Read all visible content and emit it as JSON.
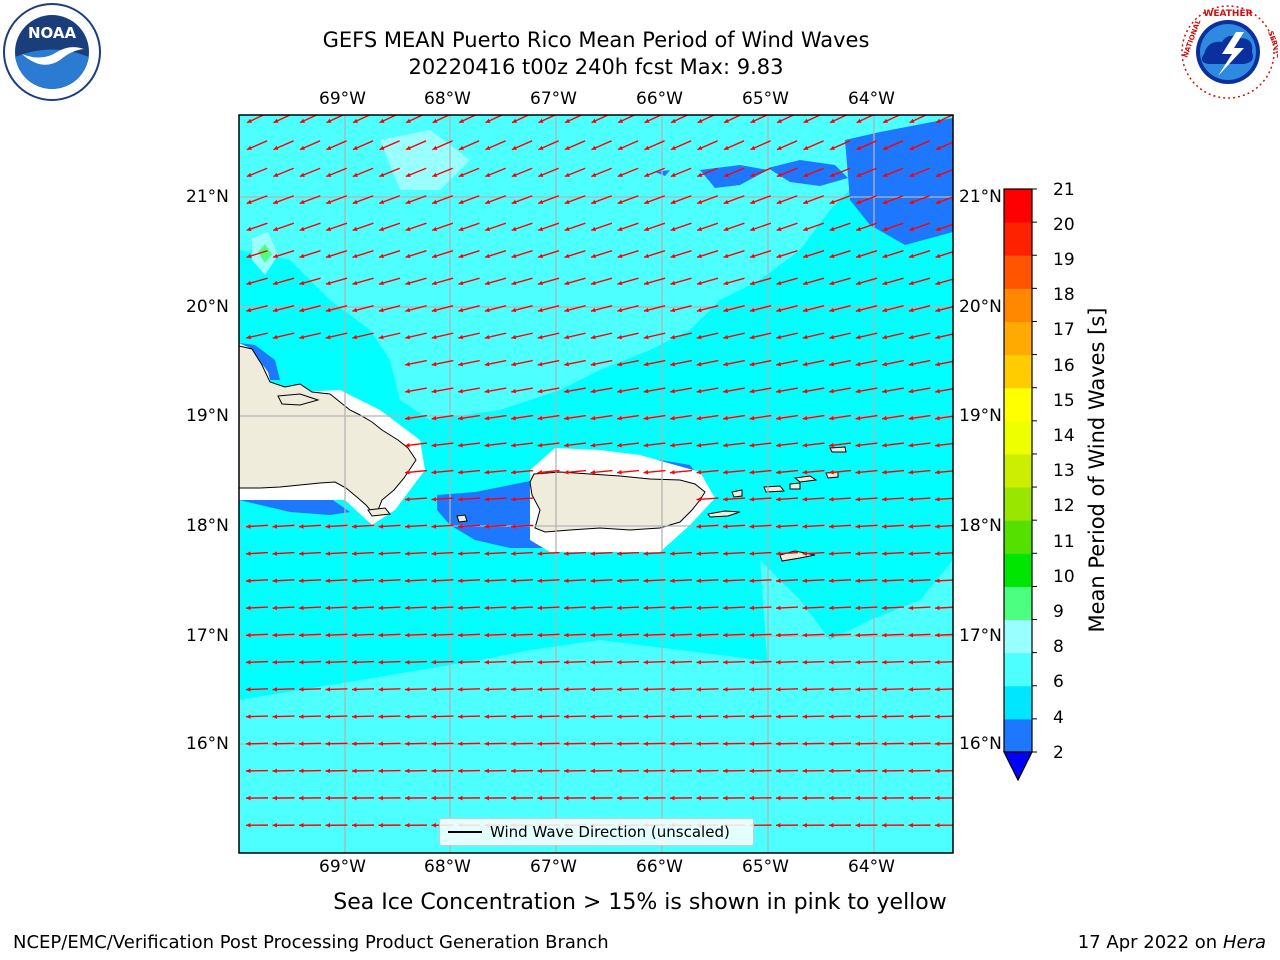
{
  "title": {
    "line1": "GEFS MEAN Puerto Rico Mean Period of Wind Waves",
    "line2": "20220416 t00z 240h fcst   Max: 9.83"
  },
  "logos": {
    "left": {
      "icon": "noaa-logo",
      "text": "NOAA"
    },
    "right": {
      "icon": "nws-logo",
      "text": "NATIONAL WEATHER SERVICE"
    }
  },
  "map": {
    "lon_labels": [
      "69°W",
      "68°W",
      "67°W",
      "66°W",
      "65°W",
      "64°W"
    ],
    "lat_labels": [
      "21°N",
      "20°N",
      "19°N",
      "18°N",
      "17°N",
      "16°N"
    ],
    "legend_label": "Wind Wave Direction (unscaled)",
    "arrow_color": "#ff0000",
    "land_color": "#efecdc",
    "colors": {
      "level_2_4": "#1e78ff",
      "level_4_6": "#00ffff",
      "level_6_8": "#4dffff",
      "level_8_9": "#99ffff",
      "level_9_10": "#4dff80"
    }
  },
  "colorbar": {
    "label": "Mean Period of Wind Waves [s]",
    "ticks": [
      "2",
      "4",
      "6",
      "8",
      "9",
      "10",
      "11",
      "12",
      "13",
      "14",
      "15",
      "16",
      "17",
      "18",
      "19",
      "20",
      "21"
    ],
    "colors": [
      "#1e78ff",
      "#00e6ff",
      "#4dffff",
      "#99ffff",
      "#4dff80",
      "#00e600",
      "#55e000",
      "#99e600",
      "#ccee00",
      "#eeff00",
      "#ffff00",
      "#ffcc00",
      "#ffaa00",
      "#ff8800",
      "#ff5500",
      "#ff2200",
      "#ff0000"
    ],
    "extend_color": "#0000ff"
  },
  "notes": {
    "ice": "Sea Ice Concentration > 15% is shown in pink to yellow",
    "footer_left": "NCEP/EMC/Verification Post Processing Product Generation Branch",
    "footer_date": "17 Apr 2022 on ",
    "footer_machine": "Hera"
  }
}
